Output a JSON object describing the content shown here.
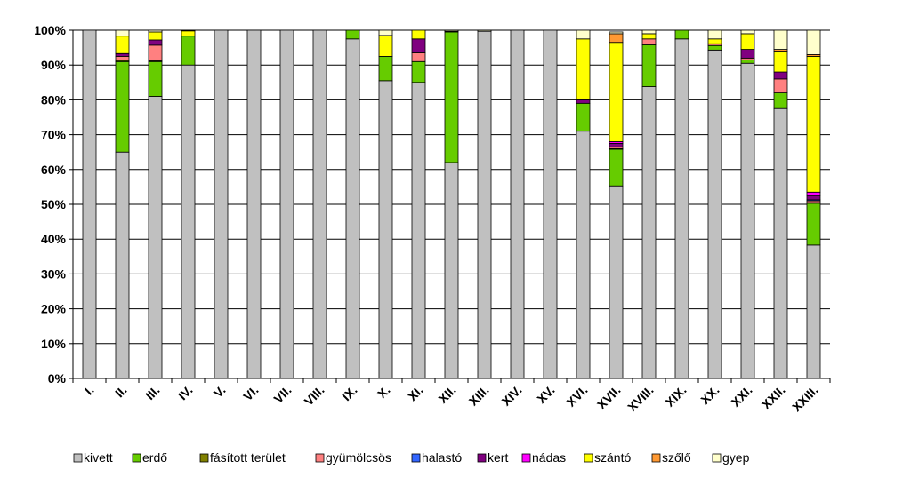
{
  "chart_data": {
    "type": "bar",
    "stacked": true,
    "percent": true,
    "title": "",
    "xlabel": "",
    "ylabel": "",
    "ylim": [
      0,
      100
    ],
    "y_ticks": [
      "0%",
      "10%",
      "20%",
      "30%",
      "40%",
      "50%",
      "60%",
      "70%",
      "80%",
      "90%",
      "100%"
    ],
    "grid": true,
    "legend_position": "bottom",
    "categories": [
      "I.",
      "II.",
      "III.",
      "IV.",
      "V.",
      "VI.",
      "VII.",
      "VIII.",
      "IX.",
      "X.",
      "XI.",
      "XII.",
      "XIII.",
      "XIV.",
      "XV.",
      "XVI.",
      "XVII.",
      "XVIII.",
      "XIX.",
      "XX.",
      "XXI.",
      "XXII.",
      "XXIII."
    ],
    "series": [
      {
        "name": "kivett",
        "color": "#c0c0c0",
        "values": [
          100,
          65,
          81,
          90,
          100,
          100,
          100,
          100,
          97.5,
          85.5,
          85,
          62,
          99.7,
          100,
          100,
          71,
          55.3,
          83.8,
          97.5,
          94.3,
          90.5,
          77.5,
          38.3
        ]
      },
      {
        "name": "erdő",
        "color": "#66cc00",
        "values": [
          0,
          26,
          10,
          8.3,
          0,
          0,
          0,
          0,
          2.5,
          7,
          6,
          37.5,
          0,
          0,
          0,
          8,
          10.5,
          12,
          2.5,
          1.3,
          1,
          4.5,
          12
        ]
      },
      {
        "name": "fásított terület",
        "color": "#808000",
        "values": [
          0,
          0.3,
          0.2,
          0,
          0,
          0,
          0,
          0,
          0,
          0,
          0,
          0.2,
          0,
          0,
          0,
          0,
          0.2,
          0,
          0,
          0,
          0,
          0,
          0.2
        ]
      },
      {
        "name": "gyümölcsös",
        "color": "#ff8080",
        "values": [
          0,
          1.2,
          4.5,
          0,
          0,
          0,
          0,
          0,
          0,
          0,
          2.5,
          0,
          0,
          0,
          0,
          0,
          0.5,
          1.7,
          0,
          0.5,
          0.5,
          4,
          0.5
        ]
      },
      {
        "name": "halastó",
        "color": "#3366ff",
        "values": [
          0,
          0,
          0,
          0,
          0,
          0,
          0,
          0,
          0,
          0,
          0,
          0,
          0,
          0,
          0,
          0,
          0,
          0,
          0,
          0,
          0,
          0,
          0.3
        ]
      },
      {
        "name": "kert",
        "color": "#800080",
        "values": [
          0,
          0.8,
          1.5,
          0,
          0,
          0,
          0,
          0,
          0,
          0,
          4,
          0,
          0,
          0,
          0,
          1,
          1,
          0,
          0,
          0,
          2.5,
          2,
          1.2
        ]
      },
      {
        "name": "nádas",
        "color": "#ff00ff",
        "values": [
          0,
          0,
          0,
          0,
          0,
          0,
          0,
          0,
          0,
          0,
          0,
          0,
          0,
          0,
          0,
          0,
          0.5,
          0,
          0,
          0,
          0,
          0,
          1
        ]
      },
      {
        "name": "szántó",
        "color": "#ffff00",
        "values": [
          0,
          5,
          2.3,
          1.5,
          0,
          0,
          0,
          0,
          0,
          6,
          2.5,
          0,
          0,
          0,
          0,
          17.5,
          28.5,
          1.5,
          0,
          1.4,
          4.5,
          6,
          39
        ]
      },
      {
        "name": "szőlő",
        "color": "#ff9933",
        "values": [
          0,
          0,
          0,
          0,
          0,
          0,
          0,
          0,
          0,
          0,
          0,
          0,
          0,
          0,
          0,
          0,
          2.5,
          0,
          0,
          0,
          0,
          0.5,
          0.5
        ]
      },
      {
        "name": "gyep",
        "color": "#ffffcc",
        "values": [
          0,
          1.7,
          0.5,
          0.2,
          0,
          0,
          0,
          0,
          0,
          1.5,
          0,
          0.3,
          0.3,
          0,
          0,
          2.5,
          0.5,
          1,
          0,
          2.5,
          1,
          5.5,
          7
        ]
      }
    ]
  }
}
